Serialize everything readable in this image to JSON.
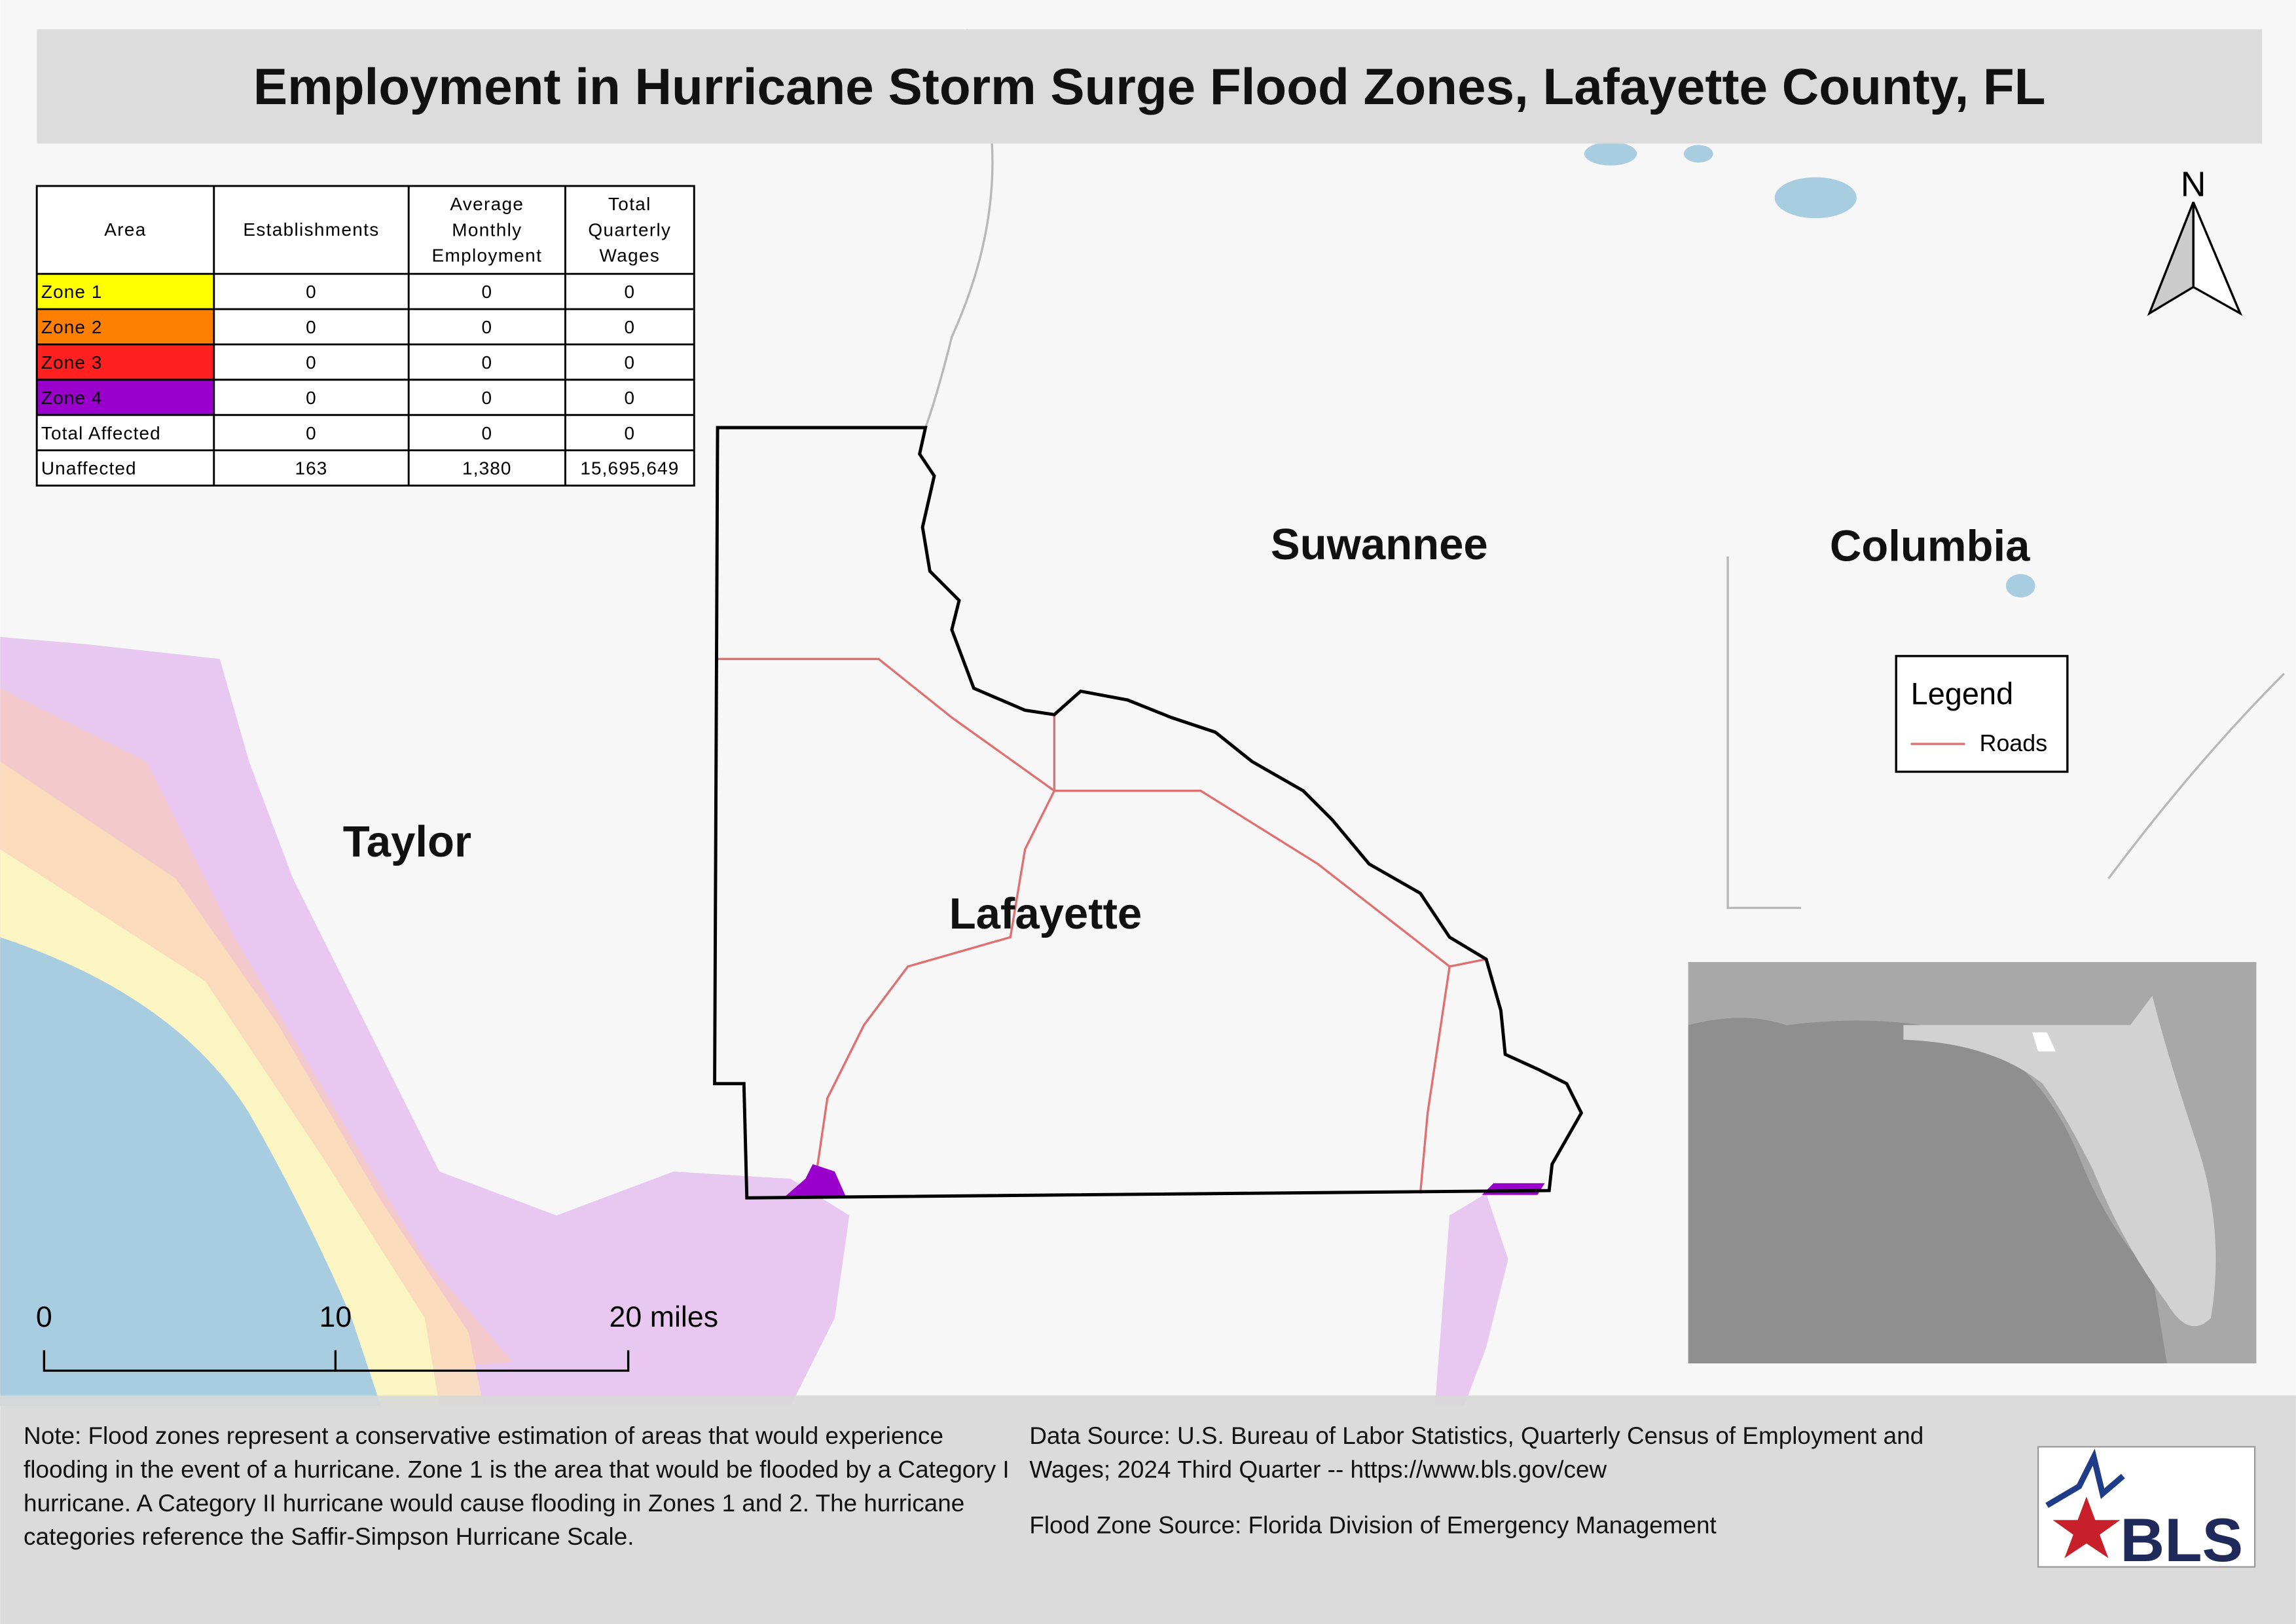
{
  "title": "Employment in Hurricane Storm Surge Flood Zones, Lafayette County, FL",
  "table": {
    "headers": [
      "Area",
      "Establishments",
      "Average Monthly Employment",
      "Total Quarterly Wages"
    ],
    "rows": [
      [
        "Zone 1",
        "0",
        "0",
        "0"
      ],
      [
        "Zone 2",
        "0",
        "0",
        "0"
      ],
      [
        "Zone 3",
        "0",
        "0",
        "0"
      ],
      [
        "Zone 4",
        "0",
        "0",
        "0"
      ],
      [
        "Total Affected",
        "0",
        "0",
        "0"
      ],
      [
        "Unaffected",
        "163",
        "1,380",
        "15,695,649"
      ]
    ],
    "row_colors": [
      "#ffff00",
      "#ff8000",
      "#ff2020",
      "#9900cc",
      null,
      null
    ]
  },
  "counties": [
    "Suwannee",
    "Columbia",
    "Taylor",
    "Lafayette"
  ],
  "north": "N",
  "legend": {
    "title": "Legend",
    "items": [
      {
        "name": "Roads",
        "color": "#e07070"
      }
    ]
  },
  "scale": [
    "0",
    "10",
    "20 miles"
  ],
  "note": "Note: Flood zones represent a conservative estimation of areas that would experience flooding in the event of a hurricane. Zone 1 is the area that would be flooded by a Category I hurricane. A Category II hurricane would cause flooding in Zones 1 and 2. The hurricane categories reference the Saffir-Simpson Hurricane Scale.",
  "data_source": "Data Source: U.S. Bureau of Labor Statistics, Quarterly Census of Employment and Wages; 2024 Third Quarter -- https://www.bls.gov/cew",
  "flood_source": "Flood Zone Source: Florida Division of Emergency Management",
  "logo": "BLS"
}
